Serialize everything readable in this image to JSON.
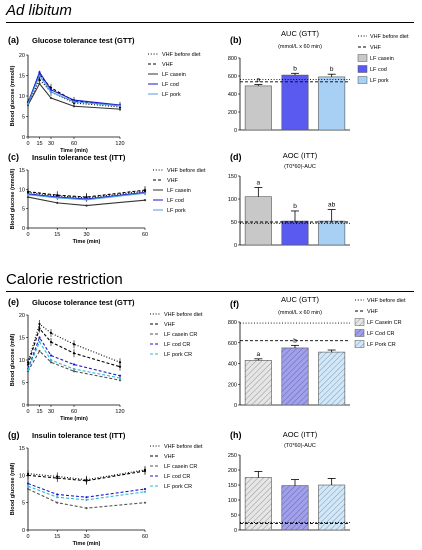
{
  "figure": {
    "section1_title": "Ad libitum",
    "section2_title": "Calorie restriction"
  },
  "chart_data": [
    {
      "panel": "(a)",
      "type": "line",
      "title": "Glucose tolerance test (GTT)",
      "xlabel": "Time (min)",
      "ylabel": "Blood glucose (mmol/l)",
      "x": [
        0,
        15,
        30,
        60,
        120
      ],
      "xlim": [
        0,
        120
      ],
      "ylim": [
        0,
        20
      ],
      "yticks": [
        0,
        5,
        10,
        15,
        20
      ],
      "series": [
        {
          "name": "VHF before diet",
          "style": "dotted",
          "color": "#000000",
          "values": [
            8.0,
            14.0,
            11.0,
            8.3,
            7.3
          ]
        },
        {
          "name": "VHF",
          "style": "dashed",
          "color": "#000000",
          "values": [
            8.5,
            15.2,
            12.0,
            8.8,
            7.6
          ]
        },
        {
          "name": "LF casein",
          "style": "solid",
          "color": "#333333",
          "values": [
            7.8,
            13.0,
            9.5,
            7.5,
            6.8
          ]
        },
        {
          "name": "LF cod",
          "style": "solid",
          "color": "#1a1acc",
          "values": [
            8.3,
            15.8,
            11.5,
            9.0,
            7.8
          ]
        },
        {
          "name": "LF pork",
          "style": "solid",
          "color": "#4d9be6",
          "values": [
            8.1,
            15.0,
            11.0,
            8.6,
            7.6
          ]
        }
      ]
    },
    {
      "panel": "(b)",
      "type": "bar",
      "title": "AUC (GTT)",
      "subtitle": "(mmol/L x 60 min)",
      "ylim": [
        0,
        800
      ],
      "yticks": [
        0,
        200,
        400,
        600,
        800
      ],
      "categories": [
        "LF casein",
        "LF cod",
        "LF pork"
      ],
      "values": [
        490,
        610,
        590
      ],
      "errors": [
        15,
        20,
        30
      ],
      "colors": [
        "#c8c8c8",
        "#5a5af0",
        "#a8d0f5"
      ],
      "sig_labels": [
        "a",
        "b",
        "b"
      ],
      "reference_lines": [
        {
          "name": "VHF before diet",
          "style": "dotted",
          "value": 560
        },
        {
          "name": "VHF",
          "style": "dashed",
          "value": 535
        }
      ]
    },
    {
      "panel": "(c)",
      "type": "line",
      "title": "Insulin tolerance test (ITT)",
      "xlabel": "Time (min)",
      "ylabel": "Blood glucose (mmol/l)",
      "x": [
        0,
        15,
        30,
        60
      ],
      "xlim": [
        0,
        60
      ],
      "ylim": [
        0,
        15
      ],
      "yticks": [
        0,
        5,
        10,
        15
      ],
      "series": [
        {
          "name": "VHF before diet",
          "style": "dotted",
          "color": "#000000",
          "values": [
            9.2,
            8.3,
            7.8,
            9.5
          ]
        },
        {
          "name": "VHF",
          "style": "dashed",
          "color": "#000000",
          "values": [
            9.4,
            8.5,
            8.0,
            9.8
          ]
        },
        {
          "name": "LF casein",
          "style": "solid",
          "color": "#333333",
          "values": [
            8.0,
            6.5,
            5.8,
            7.2
          ]
        },
        {
          "name": "LF cod",
          "style": "solid",
          "color": "#1a1acc",
          "values": [
            8.8,
            8.0,
            7.5,
            9.2
          ]
        },
        {
          "name": "LF pork",
          "style": "solid",
          "color": "#4d9be6",
          "values": [
            8.6,
            7.8,
            7.3,
            9.0
          ]
        }
      ]
    },
    {
      "panel": "(d)",
      "type": "bar",
      "title": "AOC (ITT)",
      "subtitle": "(T0*60)-AUC",
      "ylim": [
        0,
        150
      ],
      "yticks": [
        0,
        50,
        100,
        150
      ],
      "categories": [
        "LF casein",
        "LF cod",
        "LF pork"
      ],
      "values": [
        105,
        52,
        52
      ],
      "errors": [
        20,
        22,
        25
      ],
      "colors": [
        "#c8c8c8",
        "#5a5af0",
        "#a8d0f5"
      ],
      "sig_labels": [
        "a",
        "b",
        "ab"
      ],
      "reference_lines": [
        {
          "name": "VHF before diet",
          "style": "dotted",
          "value": 47
        },
        {
          "name": "VHF",
          "style": "dashed",
          "value": 50
        }
      ]
    },
    {
      "panel": "(e)",
      "type": "line",
      "title": "Glucose tolerance test (GTT)",
      "xlabel": "Time (min)",
      "ylabel": "Blood glucose (mM)",
      "x": [
        0,
        15,
        30,
        60,
        120
      ],
      "xlim": [
        0,
        120
      ],
      "ylim": [
        0,
        20
      ],
      "yticks": [
        0,
        5,
        10,
        15,
        20
      ],
      "series": [
        {
          "name": "VHF before diet",
          "style": "dotted",
          "color": "#000000",
          "values": [
            9.5,
            18.0,
            16.0,
            13.5,
            9.5
          ]
        },
        {
          "name": "VHF",
          "style": "dashed",
          "color": "#000000",
          "values": [
            9.0,
            17.0,
            14.0,
            11.5,
            8.5
          ]
        },
        {
          "name": "LF casein CR",
          "style": "dashed",
          "color": "#555555",
          "values": [
            7.5,
            12.0,
            9.5,
            7.5,
            5.5
          ]
        },
        {
          "name": "LF cod CR",
          "style": "dashed",
          "color": "#1a1acc",
          "values": [
            8.0,
            15.0,
            11.0,
            9.0,
            6.5
          ]
        },
        {
          "name": "LF pork CR",
          "style": "dashed",
          "color": "#2eb8d6",
          "values": [
            7.8,
            14.0,
            10.0,
            8.0,
            6.0
          ]
        }
      ]
    },
    {
      "panel": "(f)",
      "type": "bar",
      "title": "AUC (GTT)",
      "subtitle": "(mmol/L x 60 min)",
      "ylim": [
        0,
        800
      ],
      "yticks": [
        0,
        200,
        400,
        600,
        800
      ],
      "categories": [
        "LF Casein CR",
        "LF Cod CR",
        "LF Pork CR"
      ],
      "values": [
        430,
        550,
        510
      ],
      "errors": [
        15,
        25,
        20
      ],
      "colors": [
        "#e6e6e6",
        "#a0a0ee",
        "#d0e8fa"
      ],
      "hatched": true,
      "sig_labels": [
        "a",
        "b",
        ""
      ],
      "reference_lines": [
        {
          "name": "VHF before diet",
          "style": "dotted",
          "value": 790
        },
        {
          "name": "VHF",
          "style": "dashed",
          "value": 620
        }
      ]
    },
    {
      "panel": "(g)",
      "type": "line",
      "title": "Insulin tolerance test (ITT)",
      "xlabel": "Time (min)",
      "ylabel": "Blood glucose (mM)",
      "x": [
        0,
        15,
        30,
        60
      ],
      "xlim": [
        0,
        60
      ],
      "ylim": [
        0,
        15
      ],
      "yticks": [
        0,
        5,
        10,
        15
      ],
      "series": [
        {
          "name": "VHF before diet",
          "style": "dotted",
          "color": "#000000",
          "values": [
            10.3,
            9.8,
            9.2,
            11.0
          ]
        },
        {
          "name": "VHF",
          "style": "dashed",
          "color": "#000000",
          "values": [
            10.0,
            9.5,
            9.0,
            10.8
          ]
        },
        {
          "name": "LF casein CR",
          "style": "dashed",
          "color": "#555555",
          "values": [
            7.5,
            5.0,
            4.0,
            5.0
          ]
        },
        {
          "name": "LF cod CR",
          "style": "dashed",
          "color": "#1a1acc",
          "values": [
            8.5,
            6.5,
            6.0,
            7.5
          ]
        },
        {
          "name": "LF pork CR",
          "style": "dashed",
          "color": "#2eb8d6",
          "values": [
            8.0,
            6.0,
            5.5,
            7.0
          ]
        }
      ]
    },
    {
      "panel": "(h)",
      "type": "bar",
      "title": "AOC (ITT)",
      "subtitle": "(T0*60)-AUC",
      "ylim": [
        0,
        250
      ],
      "yticks": [
        0,
        50,
        100,
        150,
        200,
        250
      ],
      "categories": [
        "LF casein CR",
        "LF cod CR",
        "LF pork CR"
      ],
      "values": [
        175,
        148,
        150
      ],
      "errors": [
        20,
        20,
        22
      ],
      "colors": [
        "#e6e6e6",
        "#a0a0ee",
        "#d0e8fa"
      ],
      "hatched": true,
      "sig_labels": [
        "",
        "",
        ""
      ],
      "reference_lines": [
        {
          "name": "VHF before diet",
          "style": "dotted",
          "value": 25
        },
        {
          "name": "VHF",
          "style": "dashed",
          "value": 22
        }
      ]
    }
  ]
}
